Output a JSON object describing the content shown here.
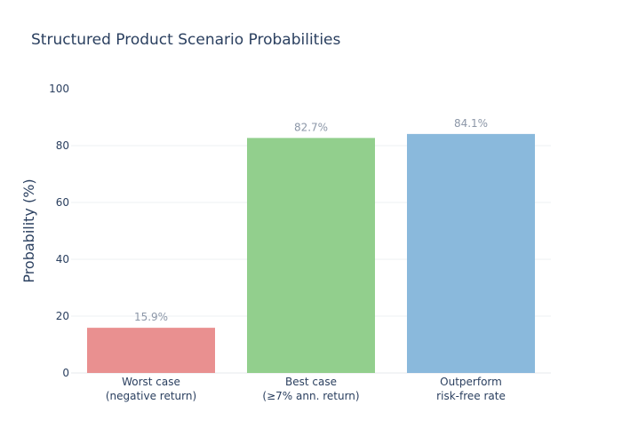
{
  "chart_data": {
    "type": "bar",
    "title": "Structured Product Scenario Probabilities",
    "xlabel": "",
    "ylabel": "Probability (%)",
    "ylim": [
      0,
      100
    ],
    "yticks": [
      0,
      20,
      40,
      60,
      80,
      100
    ],
    "categories": [
      [
        "Worst case",
        "(negative return)"
      ],
      [
        "Best case",
        "(≥7% ann. return)"
      ],
      [
        "Outperform",
        "risk-free rate"
      ]
    ],
    "values": [
      15.9,
      82.7,
      84.1
    ],
    "data_labels": [
      "15.9%",
      "82.7%",
      "84.1%"
    ],
    "colors": [
      "#e88a8a",
      "#8ccc87",
      "#84b5da"
    ],
    "grid": true,
    "legend": "none"
  }
}
